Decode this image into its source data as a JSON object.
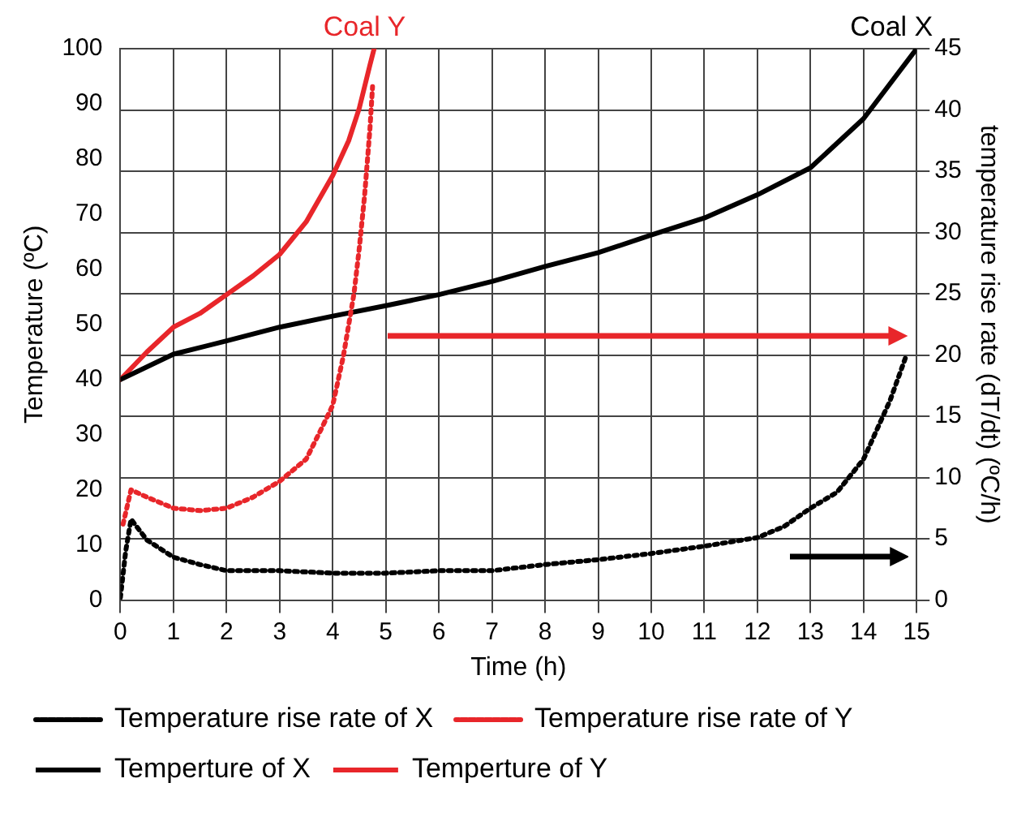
{
  "chart_data": {
    "type": "line",
    "xlabel": "Time (h)",
    "ylabel": "Temperature (ºC)",
    "y2label": "temperature rise rate (dT/dt) (ºC/h)",
    "xlim": [
      0,
      15
    ],
    "xticks": [
      0,
      1,
      2,
      3,
      4,
      5,
      6,
      7,
      8,
      9,
      10,
      11,
      12,
      13,
      14,
      15
    ],
    "ylim": [
      0,
      100
    ],
    "yticks": [
      0,
      10,
      20,
      30,
      40,
      50,
      60,
      70,
      80,
      90,
      100
    ],
    "y2lim": [
      0,
      45
    ],
    "y2ticks": [
      0,
      5,
      10,
      15,
      20,
      25,
      30,
      35,
      40,
      45
    ],
    "grid": true,
    "legend": "bottom",
    "marker": "none",
    "annotations": [
      {
        "text": "Coal Y",
        "x": 4.6,
        "y": 100
      },
      {
        "text": "Coal X",
        "x": 15,
        "y": 100
      }
    ],
    "series": [
      {
        "name": "Temperature rise rate of X",
        "color": "#000000",
        "axis": "y2",
        "line_style": "dotted",
        "x": [
          0,
          0.1,
          0.2,
          0.5,
          1,
          1.5,
          2,
          3,
          4,
          5,
          6,
          7,
          8,
          9,
          10,
          11,
          12,
          12.5,
          13,
          13.5,
          14,
          14.5,
          14.8
        ],
        "values": [
          0.2,
          4,
          6.6,
          4.9,
          3.5,
          2.9,
          2.4,
          2.4,
          2.2,
          2.2,
          2.4,
          2.4,
          2.9,
          3.3,
          3.8,
          4.4,
          5.1,
          6,
          7.5,
          8.8,
          11.5,
          16.3,
          19.9
        ]
      },
      {
        "name": "Temperature rise rate of Y",
        "color": "#e8262a",
        "axis": "y2",
        "line_style": "dotted",
        "x": [
          0.05,
          0.2,
          0.5,
          1,
          1.5,
          2,
          2.5,
          3,
          3.5,
          3.8,
          4,
          4.2,
          4.4,
          4.5,
          4.6,
          4.7,
          4.75
        ],
        "values": [
          6.2,
          9,
          8.4,
          7.5,
          7.3,
          7.5,
          8.4,
          9.7,
          11.5,
          14.1,
          15.9,
          19.9,
          25,
          28.7,
          33,
          38.4,
          41.9
        ]
      },
      {
        "name": "Temperture of X",
        "color": "#000000",
        "line_style": "solid",
        "x": [
          0,
          1,
          2,
          3,
          4,
          5,
          6,
          7,
          8,
          9,
          10,
          11,
          12,
          13,
          14,
          15
        ],
        "values": [
          40,
          44.6,
          47,
          49.5,
          51.5,
          53.4,
          55.4,
          57.8,
          60.5,
          63,
          66.2,
          69.3,
          73.5,
          78.4,
          87.3,
          100
        ]
      },
      {
        "name": "Temperture of Y",
        "color": "#e8262a",
        "line_style": "solid",
        "x": [
          0,
          0.5,
          1,
          1.5,
          2,
          2.5,
          3,
          3.5,
          4,
          4.3,
          4.5,
          4.7,
          4.78
        ],
        "values": [
          40,
          45,
          49.5,
          52,
          55.4,
          58.8,
          62.7,
          68.6,
          77,
          83.3,
          89.2,
          97,
          100
        ]
      }
    ]
  }
}
